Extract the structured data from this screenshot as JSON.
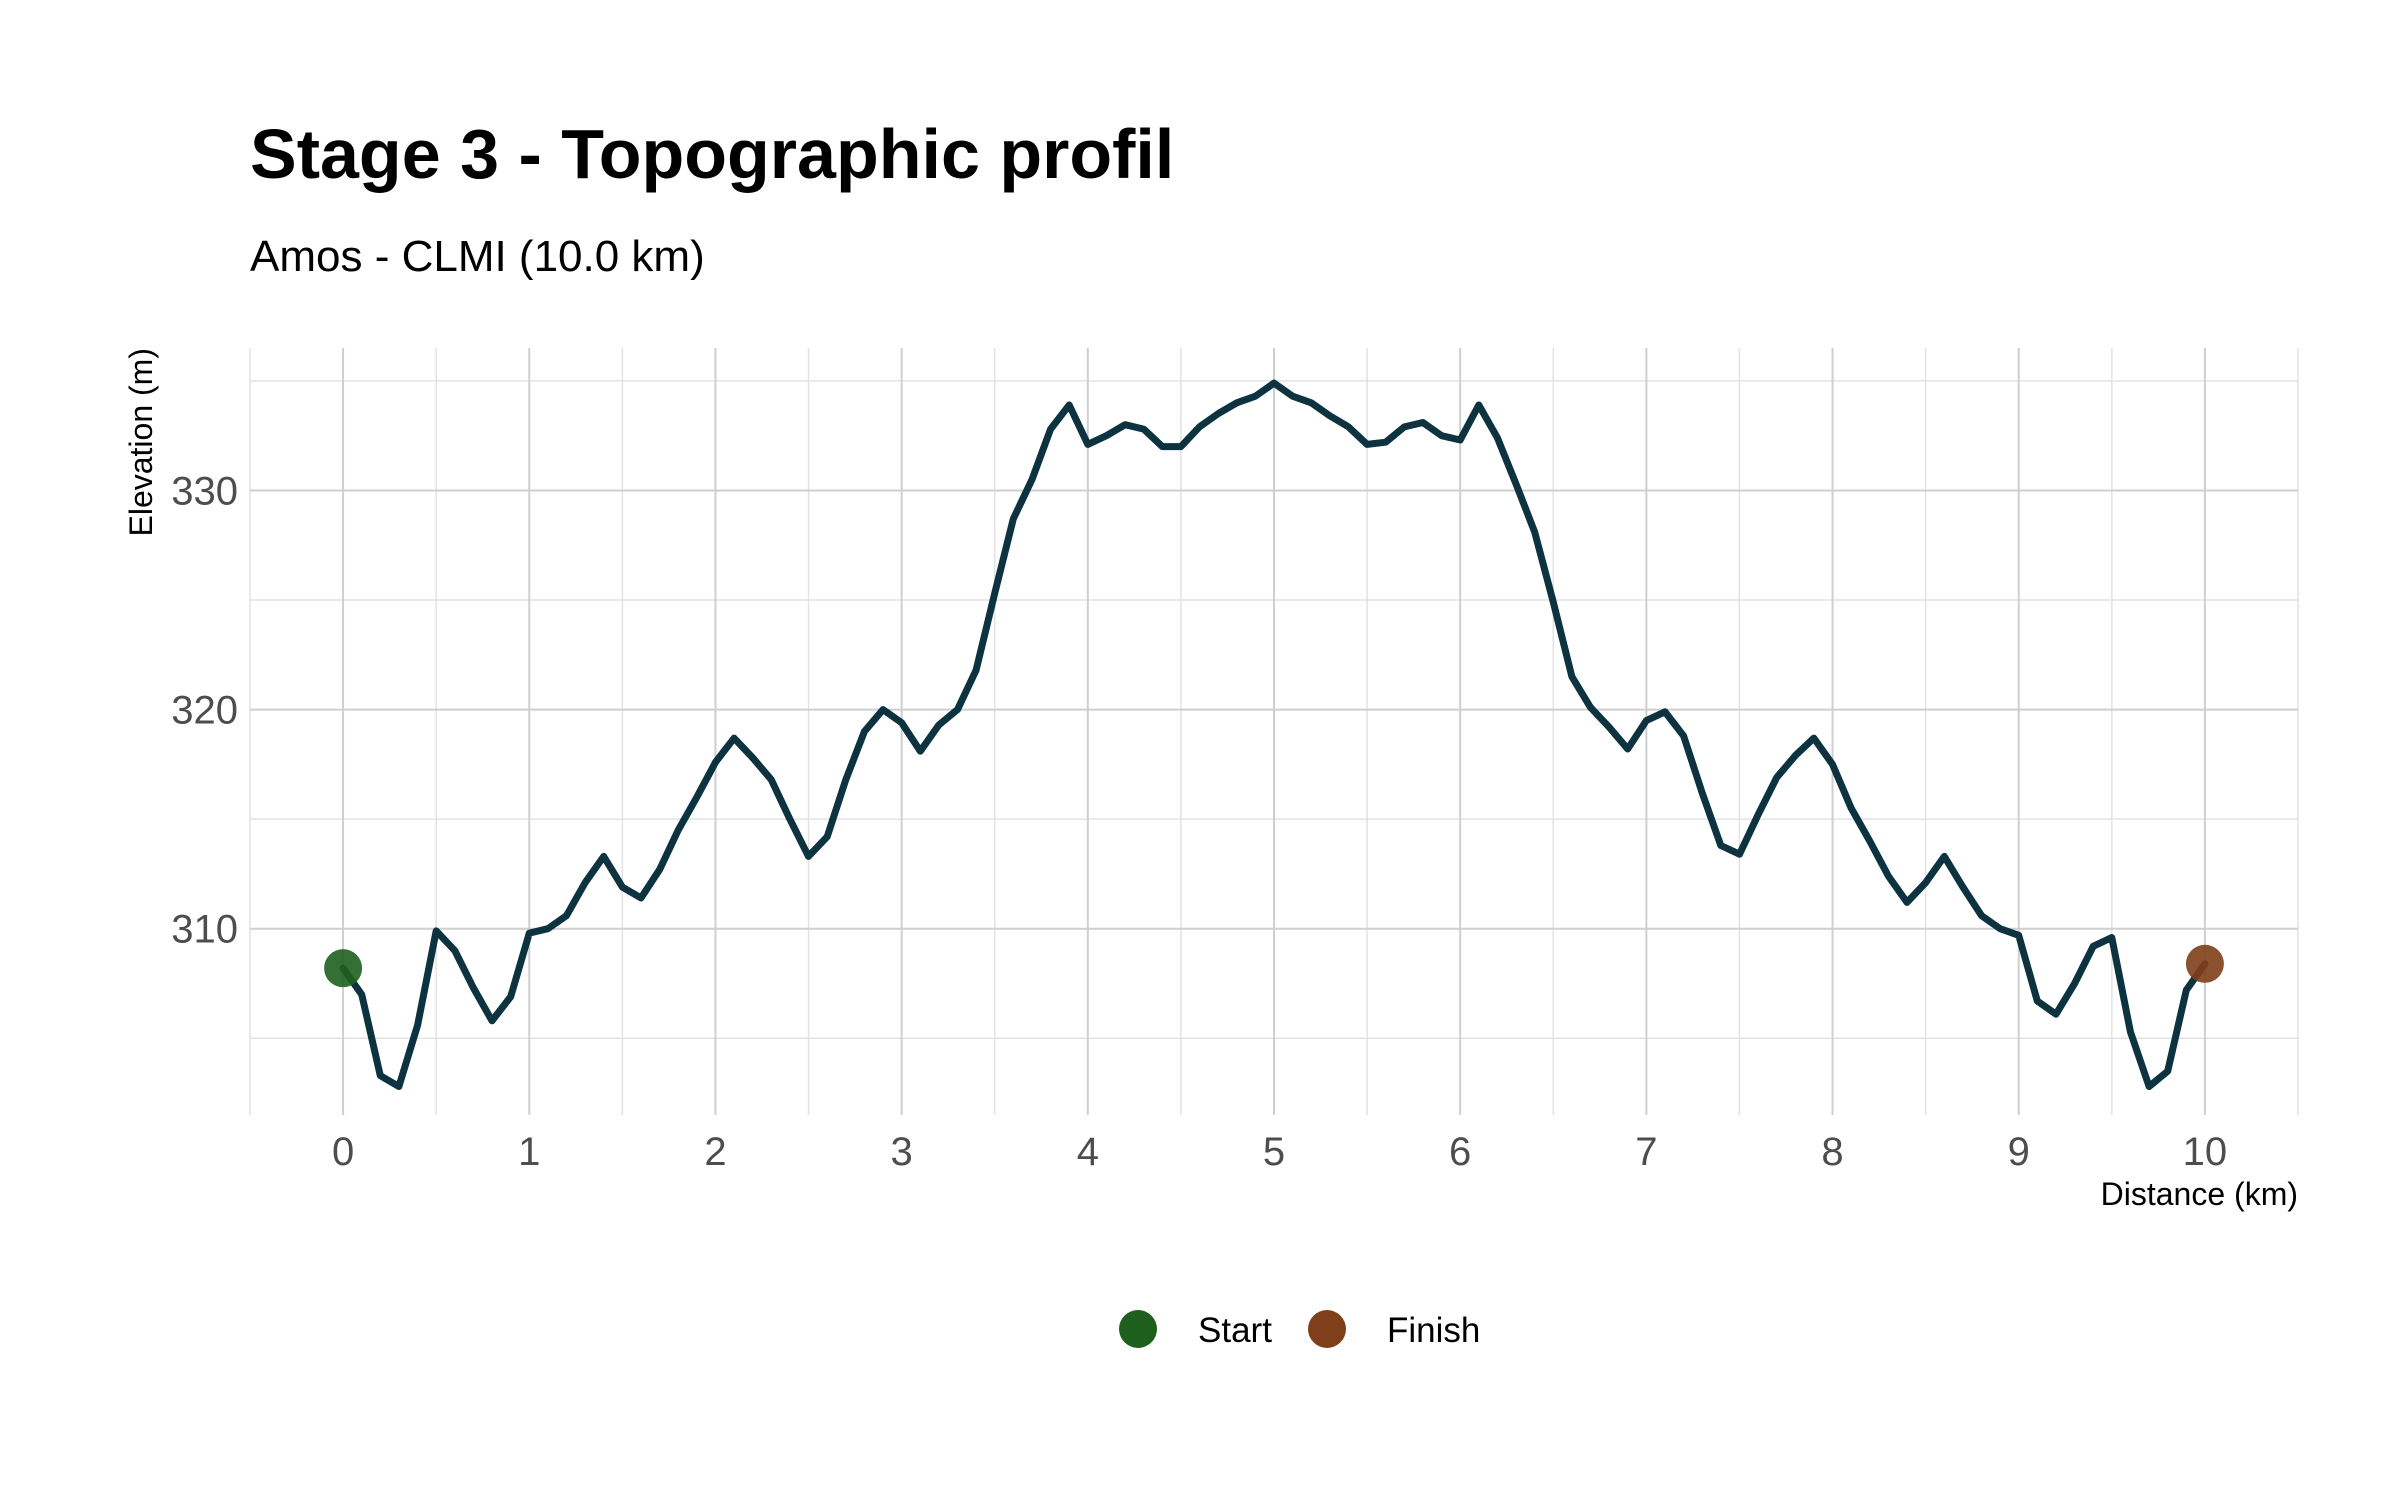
{
  "chart_data": {
    "type": "line",
    "title": "Stage 3 - Topographic profil",
    "subtitle": "Amos - CLMI (10.0 km)",
    "xlabel": "Distance (km)",
    "ylabel": "Elevation (m)",
    "xlim": [
      -0.5,
      10.5
    ],
    "ylim": [
      301.5,
      336.5
    ],
    "x_ticks": [
      "0",
      "1",
      "2",
      "3",
      "4",
      "5",
      "6",
      "7",
      "8",
      "9",
      "10"
    ],
    "y_ticks": [
      "310",
      "320",
      "330"
    ],
    "grid": true,
    "legend_position": "bottom",
    "colors": {
      "line": "#0d3340",
      "start": "#1e5f1e",
      "finish": "#7f3f1a"
    },
    "series": [
      {
        "x": [
          0,
          0.1,
          0.2,
          0.3,
          0.4,
          0.5,
          0.6,
          0.7,
          0.8,
          0.9,
          1.0,
          1.1,
          1.2,
          1.3,
          1.4,
          1.5,
          1.6,
          1.7,
          1.8,
          1.9,
          2.0,
          2.1,
          2.2,
          2.3,
          2.4,
          2.5,
          2.6,
          2.7,
          2.8,
          2.9,
          3.0,
          3.1,
          3.2,
          3.3,
          3.4,
          3.5,
          3.6,
          3.7,
          3.8,
          3.9,
          4.0,
          4.1,
          4.2,
          4.3,
          4.4,
          4.5,
          4.6,
          4.7,
          4.8,
          4.9,
          5.0,
          5.1,
          5.2,
          5.3,
          5.4,
          5.5,
          5.6,
          5.7,
          5.8,
          5.9,
          6.0,
          6.1,
          6.2,
          6.3,
          6.4,
          6.5,
          6.6,
          6.7,
          6.8,
          6.9,
          7.0,
          7.1,
          7.2,
          7.3,
          7.4,
          7.5,
          7.6,
          7.7,
          7.8,
          7.9,
          8.0,
          8.1,
          8.2,
          8.3,
          8.4,
          8.5,
          8.6,
          8.7,
          8.8,
          8.9,
          9.0,
          9.1,
          9.2,
          9.3,
          9.4,
          9.5,
          9.6,
          9.7,
          9.8,
          9.9,
          10.0
        ],
        "values": [
          308.2,
          307.0,
          303.3,
          302.8,
          305.6,
          309.9,
          309.0,
          307.3,
          305.8,
          306.9,
          309.8,
          310.0,
          310.6,
          312.1,
          313.3,
          311.9,
          311.4,
          312.7,
          314.5,
          316.0,
          317.6,
          318.7,
          317.8,
          316.8,
          315.0,
          313.3,
          314.2,
          316.8,
          319.0,
          320.0,
          319.4,
          318.1,
          319.3,
          320.0,
          321.8,
          325.3,
          328.7,
          330.5,
          332.8,
          333.9,
          332.1,
          332.5,
          333.0,
          332.8,
          332.0,
          332.0,
          332.9,
          333.5,
          334.0,
          334.3,
          334.9,
          334.3,
          334.0,
          333.4,
          332.9,
          332.1,
          332.2,
          332.9,
          333.1,
          332.5,
          332.3,
          333.9,
          332.4,
          330.3,
          328.1,
          324.9,
          321.5,
          320.1,
          319.2,
          318.2,
          319.5,
          319.9,
          318.8,
          316.2,
          313.8,
          313.4,
          315.2,
          316.9,
          317.9,
          318.7,
          317.5,
          315.5,
          314.0,
          312.4,
          311.2,
          312.1,
          313.3,
          311.9,
          310.6,
          310.0,
          309.7,
          306.7,
          306.1,
          307.5,
          309.2,
          309.6,
          305.3,
          302.8,
          303.5,
          307.2,
          308.4
        ]
      }
    ],
    "legend": [
      {
        "label": "Start",
        "color": "#1e5f1e",
        "x": 0,
        "y": 308.2
      },
      {
        "label": "Finish",
        "color": "#7f3f1a",
        "x": 10,
        "y": 308.4
      }
    ]
  }
}
